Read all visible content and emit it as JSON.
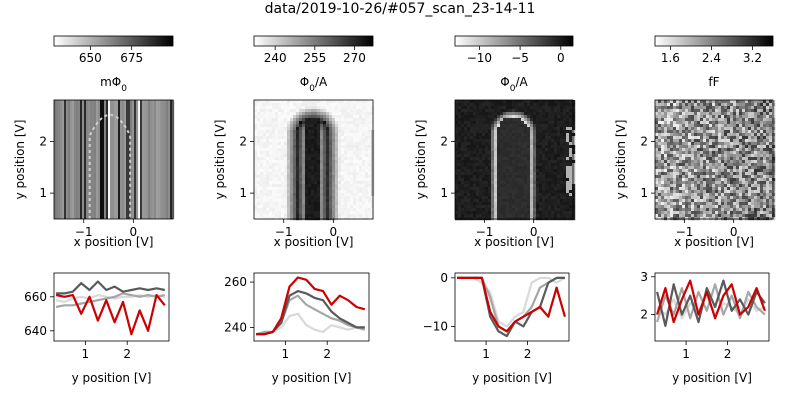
{
  "suptitle": "data/2019-10-26/#057_scan_23-14-11",
  "panels": [
    {
      "colorbar": {
        "label": "mΦ",
        "label_sub": "0",
        "ticks": [
          "650",
          "675"
        ],
        "tick_values": [
          650,
          675
        ],
        "range": [
          628,
          700
        ]
      },
      "map": {
        "style": "striped",
        "xlabel": "x position [V]",
        "ylabel": "y position [V]",
        "xticks": [
          "−1",
          "0"
        ],
        "xtick_values": [
          -1,
          0
        ],
        "yticks": [
          "1",
          "2"
        ],
        "ytick_values": [
          1,
          2
        ],
        "xlim": [
          -1.6,
          0.8
        ],
        "ylim": [
          2.8,
          0.5
        ]
      },
      "line": {
        "xlabel": "y position [V]",
        "xticks": [
          "1",
          "2"
        ],
        "xtick_values": [
          1,
          2
        ],
        "xlim": [
          0.25,
          3.0
        ],
        "yticks": [
          "640",
          "660"
        ],
        "ytick_values": [
          640,
          660
        ],
        "ylim": [
          634,
          674
        ]
      }
    },
    {
      "colorbar": {
        "label": "Φ",
        "label_sub": "0",
        "label_suffix": "/A",
        "ticks": [
          "240",
          "255",
          "270"
        ],
        "tick_values": [
          240,
          255,
          270
        ],
        "range": [
          232,
          277
        ]
      },
      "map": {
        "style": "dark-u",
        "xlabel": "x position [V]",
        "ylabel": "y position [V]",
        "xticks": [
          "−1",
          "0"
        ],
        "xtick_values": [
          -1,
          0
        ],
        "yticks": [
          "1",
          "2"
        ],
        "ytick_values": [
          1,
          2
        ],
        "xlim": [
          -1.6,
          0.8
        ],
        "ylim": [
          2.8,
          0.5
        ]
      },
      "line": {
        "xlabel": "y position [V]",
        "xticks": [
          "1",
          "2"
        ],
        "xtick_values": [
          1,
          2
        ],
        "xlim": [
          0.25,
          3.0
        ],
        "yticks": [
          "240",
          "260"
        ],
        "ytick_values": [
          240,
          260
        ],
        "ylim": [
          234,
          264
        ]
      }
    },
    {
      "colorbar": {
        "label": "Φ",
        "label_sub": "0",
        "label_suffix": "/A",
        "ticks": [
          "−10",
          "−5",
          "0"
        ],
        "tick_values": [
          -10,
          -5,
          0
        ],
        "range": [
          -13,
          1.5
        ]
      },
      "map": {
        "style": "light-u",
        "xlabel": "x position [V]",
        "ylabel": "y position [V]",
        "xticks": [
          "−1",
          "0"
        ],
        "xtick_values": [
          -1,
          0
        ],
        "yticks": [
          "1",
          "2"
        ],
        "ytick_values": [
          1,
          2
        ],
        "xlim": [
          -1.6,
          0.8
        ],
        "ylim": [
          2.8,
          0.5
        ]
      },
      "line": {
        "xlabel": "y position [V]",
        "xticks": [
          "1",
          "2"
        ],
        "xtick_values": [
          1,
          2
        ],
        "xlim": [
          0.25,
          3.0
        ],
        "yticks": [
          "−10",
          "0"
        ],
        "ytick_values": [
          -10,
          0
        ],
        "ylim": [
          -13,
          1
        ]
      }
    },
    {
      "colorbar": {
        "label": "fF",
        "ticks": [
          "1.6",
          "2.4",
          "3.2"
        ],
        "tick_values": [
          1.6,
          2.4,
          3.2
        ],
        "range": [
          1.3,
          3.6
        ]
      },
      "map": {
        "style": "noise",
        "xlabel": "x position [V]",
        "ylabel": "y position [V]",
        "xticks": [
          "−1",
          "0"
        ],
        "xtick_values": [
          -1,
          0
        ],
        "yticks": [
          "1",
          "2"
        ],
        "ytick_values": [
          1,
          2
        ],
        "xlim": [
          -1.6,
          0.8
        ],
        "ylim": [
          2.8,
          0.5
        ]
      },
      "line": {
        "xlabel": "y position [V]",
        "xticks": [
          "1",
          "2"
        ],
        "xtick_values": [
          1,
          2
        ],
        "xlim": [
          0.25,
          3.0
        ],
        "yticks": [
          "2",
          "3"
        ],
        "ytick_values": [
          2,
          3
        ],
        "ylim": [
          1.3,
          3.1
        ]
      }
    }
  ],
  "chart_data": [
    {
      "type": "line",
      "xlabel": "y position [V]",
      "ylabel": "",
      "x": [
        0.3,
        0.5,
        0.7,
        0.9,
        1.1,
        1.3,
        1.5,
        1.7,
        1.9,
        2.1,
        2.3,
        2.5,
        2.7,
        2.9
      ],
      "series": [
        {
          "color": "#d9d9d9",
          "values": [
            658,
            657,
            659,
            660,
            659,
            661,
            660,
            659,
            660,
            660,
            661,
            660,
            661,
            660
          ]
        },
        {
          "color": "#a6a6a6",
          "values": [
            654,
            655,
            655,
            656,
            657,
            658,
            659,
            660,
            662,
            661,
            660,
            661,
            660,
            661
          ]
        },
        {
          "color": "#5a5a5a",
          "values": [
            662,
            662,
            663,
            668,
            664,
            669,
            664,
            666,
            663,
            664,
            665,
            664,
            665,
            664
          ]
        },
        {
          "color": "#cc0000",
          "values": [
            661,
            660,
            661,
            650,
            660,
            646,
            658,
            645,
            657,
            638,
            652,
            640,
            661,
            655
          ]
        }
      ]
    },
    {
      "type": "line",
      "xlabel": "y position [V]",
      "ylabel": "",
      "x": [
        0.3,
        0.5,
        0.7,
        0.9,
        1.1,
        1.3,
        1.5,
        1.7,
        1.9,
        2.1,
        2.3,
        2.5,
        2.7,
        2.9
      ],
      "series": [
        {
          "color": "#d9d9d9",
          "values": [
            237,
            237,
            238,
            240,
            245,
            246,
            241,
            239,
            238,
            241,
            240,
            239,
            240,
            240
          ]
        },
        {
          "color": "#a6a6a6",
          "values": [
            237,
            238,
            238,
            242,
            252,
            254,
            250,
            248,
            246,
            244,
            243,
            241,
            240,
            239
          ]
        },
        {
          "color": "#5a5a5a",
          "values": [
            237,
            237,
            238,
            242,
            254,
            256,
            255,
            253,
            252,
            247,
            244,
            242,
            240,
            240
          ]
        },
        {
          "color": "#cc0000",
          "values": [
            237,
            237,
            238,
            244,
            258,
            262,
            261,
            257,
            256,
            250,
            254,
            252,
            249,
            248
          ]
        }
      ]
    },
    {
      "type": "line",
      "xlabel": "y position [V]",
      "ylabel": "",
      "x": [
        0.3,
        0.5,
        0.7,
        0.9,
        1.1,
        1.3,
        1.5,
        1.7,
        1.9,
        2.1,
        2.3,
        2.5,
        2.7,
        2.9
      ],
      "series": [
        {
          "color": "#d9d9d9",
          "values": [
            0,
            0,
            0,
            -1,
            -3,
            -9,
            -10,
            -8,
            -7,
            -1,
            0,
            0,
            -1,
            0
          ]
        },
        {
          "color": "#a6a6a6",
          "values": [
            0,
            0,
            0,
            0,
            -4,
            -10,
            -11,
            -9,
            -8,
            -6,
            -2,
            -1,
            0,
            0
          ]
        },
        {
          "color": "#5a5a5a",
          "values": [
            0,
            0,
            0,
            0,
            -8,
            -11,
            -12,
            -9,
            -10,
            -7,
            -6,
            -1,
            0,
            0
          ]
        },
        {
          "color": "#cc0000",
          "values": [
            0,
            0,
            0,
            0,
            -7,
            -10,
            -11,
            -9,
            -8,
            -7,
            -6,
            -8,
            -2,
            -8
          ]
        }
      ]
    },
    {
      "type": "line",
      "xlabel": "y position [V]",
      "ylabel": "",
      "x": [
        0.3,
        0.5,
        0.7,
        0.9,
        1.1,
        1.3,
        1.5,
        1.7,
        1.9,
        2.1,
        2.3,
        2.5,
        2.7,
        2.9
      ],
      "series": [
        {
          "color": "#d9d9d9",
          "values": [
            2.2,
            2.0,
            2.4,
            1.9,
            2.3,
            2.1,
            2.5,
            2.0,
            2.3,
            2.2,
            2.0,
            2.4,
            2.1,
            2.2
          ]
        },
        {
          "color": "#a6a6a6",
          "values": [
            1.8,
            2.5,
            2.0,
            2.7,
            1.9,
            2.6,
            2.1,
            2.8,
            2.0,
            2.5,
            1.9,
            2.6,
            2.2,
            2.0
          ]
        },
        {
          "color": "#5a5a5a",
          "values": [
            2.6,
            1.7,
            2.8,
            2.0,
            2.5,
            1.8,
            2.7,
            2.2,
            2.9,
            2.1,
            2.4,
            2.0,
            2.6,
            2.3
          ]
        },
        {
          "color": "#cc0000",
          "values": [
            2.0,
            2.7,
            1.8,
            2.4,
            2.9,
            2.0,
            2.6,
            1.9,
            2.5,
            2.8,
            2.0,
            2.2,
            2.7,
            2.1
          ]
        }
      ]
    }
  ]
}
